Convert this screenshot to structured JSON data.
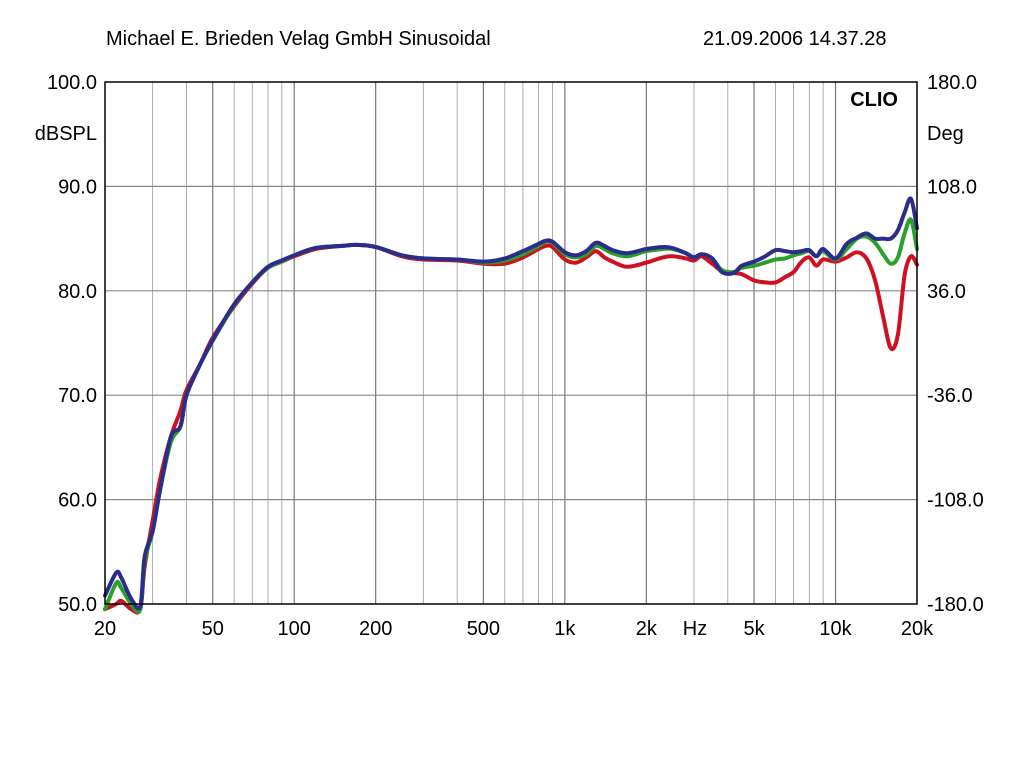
{
  "header": {
    "left": "Michael E. Brieden Velag GmbH Sinusoidal",
    "right": "21.09.2006 14.37.28"
  },
  "chart_data": {
    "type": "line",
    "brand": "CLIO",
    "x_scale": "log",
    "xlim": [
      20,
      20000
    ],
    "ylim": [
      50,
      100
    ],
    "y2lim": [
      -180,
      180
    ],
    "ylabel": "dBSPL",
    "y2label": "Deg",
    "xunit_label": "Hz",
    "grid": true,
    "x_tick_labels": [
      {
        "value": 20,
        "label": "20"
      },
      {
        "value": 50,
        "label": "50"
      },
      {
        "value": 100,
        "label": "100"
      },
      {
        "value": 200,
        "label": "200"
      },
      {
        "value": 500,
        "label": "500"
      },
      {
        "value": 1000,
        "label": "1k"
      },
      {
        "value": 2000,
        "label": "2k"
      },
      {
        "value": 5000,
        "label": "5k"
      },
      {
        "value": 10000,
        "label": "10k"
      },
      {
        "value": 20000,
        "label": "20k"
      }
    ],
    "y_tick_labels": [
      {
        "value": 100,
        "label": "100.0"
      },
      {
        "value": 90,
        "label": "90.0"
      },
      {
        "value": 80,
        "label": "80.0"
      },
      {
        "value": 70,
        "label": "70.0"
      },
      {
        "value": 60,
        "label": "60.0"
      },
      {
        "value": 50,
        "label": "50.0"
      }
    ],
    "y2_tick_labels": [
      {
        "value": 180,
        "label": "180.0"
      },
      {
        "value": 108,
        "label": "108.0"
      },
      {
        "value": 36,
        "label": "36.0"
      },
      {
        "value": -36,
        "label": "-36.0"
      },
      {
        "value": -108,
        "label": "-108.0"
      },
      {
        "value": -180,
        "label": "-180.0"
      }
    ],
    "x": [
      20,
      22,
      23,
      25,
      27,
      28,
      30,
      32,
      35,
      38,
      40,
      45,
      50,
      60,
      70,
      80,
      90,
      100,
      120,
      150,
      170,
      200,
      250,
      300,
      400,
      500,
      600,
      700,
      800,
      850,
      900,
      1000,
      1100,
      1200,
      1300,
      1400,
      1500,
      1700,
      2000,
      2300,
      2500,
      2800,
      3000,
      3200,
      3500,
      3800,
      4200,
      4500,
      5000,
      5500,
      6000,
      6500,
      7000,
      7500,
      8000,
      8500,
      9000,
      10000,
      11000,
      12000,
      13000,
      14000,
      15000,
      16000,
      17000,
      18000,
      19000,
      20000
    ],
    "series": [
      {
        "color": "#d01020",
        "values": [
          48.0,
          50.0,
          50.3,
          49.5,
          49.0,
          53.5,
          58.0,
          62.0,
          66.0,
          68.5,
          70.5,
          73.0,
          75.5,
          78.5,
          80.7,
          82.2,
          82.8,
          83.3,
          84.0,
          84.3,
          84.4,
          84.2,
          83.3,
          83.0,
          82.9,
          82.6,
          82.6,
          83.2,
          84.0,
          84.3,
          84.2,
          83.0,
          82.7,
          83.2,
          83.8,
          83.2,
          82.8,
          82.3,
          82.7,
          83.2,
          83.3,
          83.1,
          82.9,
          83.3,
          82.6,
          81.9,
          81.7,
          81.6,
          81.0,
          80.8,
          80.8,
          81.3,
          81.8,
          82.8,
          83.2,
          82.4,
          83.0,
          82.8,
          83.2,
          83.7,
          83.1,
          81.0,
          77.5,
          74.5,
          75.8,
          81.5,
          83.3,
          82.5
        ]
      },
      {
        "color": "#2aa02a",
        "values": [
          49.0,
          52.0,
          51.5,
          50.0,
          49.5,
          54.0,
          57.0,
          61.0,
          65.5,
          67.0,
          70.0,
          73.0,
          75.2,
          78.6,
          80.8,
          82.2,
          82.8,
          83.4,
          84.1,
          84.3,
          84.4,
          84.2,
          83.4,
          83.1,
          83.0,
          82.7,
          82.9,
          83.5,
          84.3,
          84.7,
          84.6,
          83.5,
          83.2,
          83.5,
          84.3,
          84.0,
          83.6,
          83.3,
          83.8,
          84.0,
          84.0,
          83.6,
          83.2,
          83.5,
          83.1,
          82.0,
          81.8,
          82.2,
          82.4,
          82.7,
          83.0,
          83.1,
          83.4,
          83.6,
          83.8,
          83.3,
          83.8,
          83.0,
          84.0,
          85.0,
          85.2,
          84.6,
          83.5,
          82.6,
          83.2,
          85.5,
          86.8,
          84.0
        ]
      },
      {
        "color": "#2c2c8c",
        "values": [
          50.8,
          53.0,
          52.5,
          50.5,
          49.8,
          54.5,
          57.0,
          61.0,
          66.0,
          67.0,
          70.0,
          73.0,
          75.3,
          78.7,
          80.8,
          82.3,
          82.9,
          83.4,
          84.1,
          84.3,
          84.4,
          84.2,
          83.4,
          83.1,
          83.0,
          82.8,
          83.1,
          83.8,
          84.5,
          84.8,
          84.7,
          83.7,
          83.4,
          83.8,
          84.6,
          84.3,
          83.9,
          83.6,
          84.0,
          84.2,
          84.1,
          83.6,
          83.2,
          83.5,
          83.1,
          81.8,
          81.7,
          82.4,
          82.8,
          83.3,
          83.9,
          83.8,
          83.7,
          83.8,
          83.9,
          83.3,
          84.0,
          83.1,
          84.5,
          85.1,
          85.5,
          85.0,
          85.0,
          85.0,
          85.8,
          87.5,
          88.8,
          86.0
        ]
      }
    ]
  }
}
